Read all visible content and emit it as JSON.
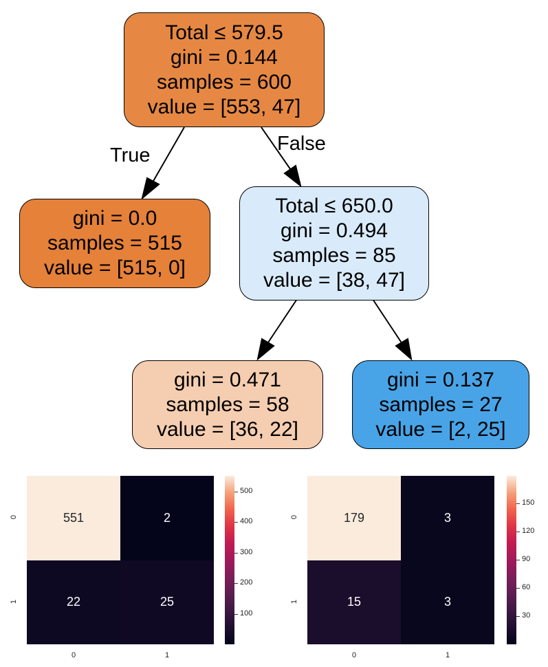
{
  "tree": {
    "nodes": [
      {
        "id": "root",
        "lines": [
          "Total ≤ 579.5",
          "gini = 0.144",
          "samples = 600",
          "value = [553, 47]"
        ],
        "fill": "#e68843"
      },
      {
        "id": "left",
        "lines": [
          "gini = 0.0",
          "samples = 515",
          "value = [515, 0]"
        ],
        "fill": "#e58139"
      },
      {
        "id": "right",
        "lines": [
          "Total ≤ 650.0",
          "gini = 0.494",
          "samples = 85",
          "value = [38, 47]"
        ],
        "fill": "#d9ebfa"
      },
      {
        "id": "rl",
        "lines": [
          "gini = 0.471",
          "samples = 58",
          "value = [36, 22]"
        ],
        "fill": "#f5cdb0"
      },
      {
        "id": "rr",
        "lines": [
          "gini = 0.137",
          "samples = 27",
          "value = [2, 25]"
        ],
        "fill": "#48a4e7"
      }
    ],
    "edge_labels": {
      "true_label": "True",
      "false_label": "False"
    }
  },
  "chart_data": [
    {
      "type": "heatmap",
      "x_categories": [
        "0",
        "1"
      ],
      "y_categories": [
        "0",
        "1"
      ],
      "values": [
        [
          551,
          2
        ],
        [
          22,
          25
        ]
      ],
      "colorbar": {
        "min": 0,
        "max": 551,
        "ticks": [
          "100",
          "200",
          "300",
          "400",
          "500"
        ]
      }
    },
    {
      "type": "heatmap",
      "x_categories": [
        "0",
        "1"
      ],
      "y_categories": [
        "0",
        "1"
      ],
      "values": [
        [
          179,
          3
        ],
        [
          15,
          3
        ]
      ],
      "colorbar": {
        "min": 0,
        "max": 179,
        "ticks": [
          "30",
          "60",
          "90",
          "120",
          "150"
        ]
      }
    }
  ]
}
